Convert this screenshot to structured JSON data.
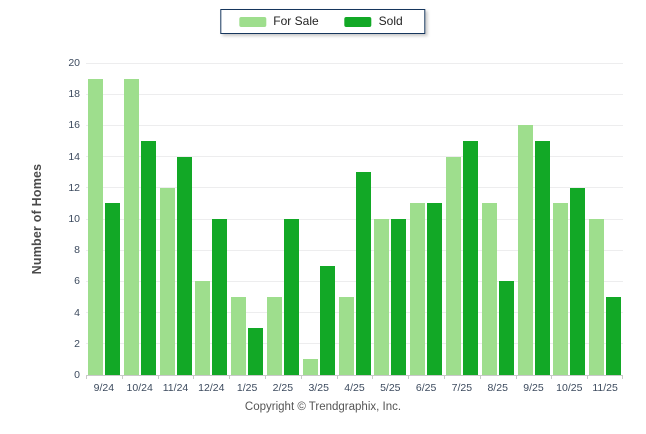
{
  "chart_data": {
    "type": "bar",
    "title": "",
    "categories": [
      "9/24",
      "10/24",
      "11/24",
      "12/24",
      "1/25",
      "2/25",
      "3/25",
      "4/25",
      "5/25",
      "6/25",
      "7/25",
      "8/25",
      "9/25",
      "10/25",
      "11/25"
    ],
    "series": [
      {
        "name": "For Sale",
        "color": "#9EDE8D",
        "values": [
          19,
          19,
          12,
          6,
          5,
          5,
          1,
          5,
          10,
          11,
          14,
          11,
          16,
          11,
          10
        ]
      },
      {
        "name": "Sold",
        "color": "#12A826",
        "values": [
          11,
          15,
          14,
          10,
          3,
          10,
          7,
          13,
          10,
          11,
          15,
          6,
          15,
          12,
          5
        ]
      }
    ],
    "xlabel": "",
    "ylabel": "Number of Homes",
    "ylim": [
      0,
      20
    ],
    "ytick_step": 2,
    "grid": true,
    "legend_position": "top-center"
  },
  "colors": {
    "grid": "#EDEDEE",
    "axis": "#C9C9C9",
    "tick_text": "#3C4A5E",
    "legend_border": "#16365D"
  },
  "footer": {
    "copyright": "Copyright © Trendgraphix, Inc."
  }
}
